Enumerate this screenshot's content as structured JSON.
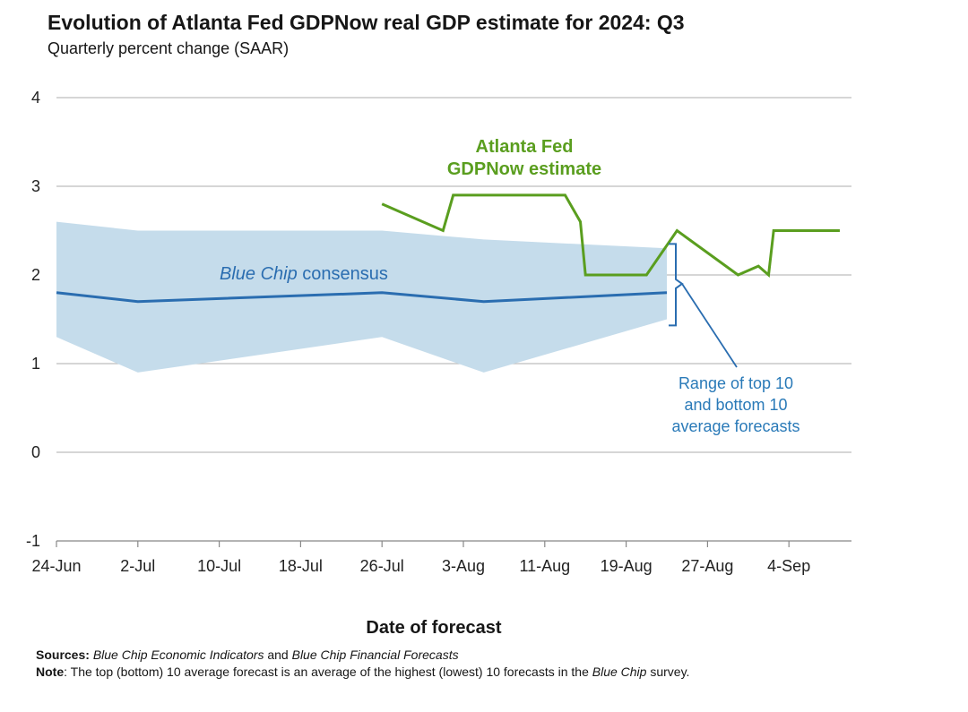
{
  "title": "Evolution of Atlanta Fed GDPNow real GDP estimate for 2024: Q3",
  "subtitle": "Quarterly percent change (SAAR)",
  "footer": {
    "sources_label": "Sources:",
    "sources_italic1": "Blue Chip Economic Indicators",
    "sources_and": "and",
    "sources_italic2": "Blue Chip Financial Forecasts",
    "note_label": "Note",
    "note_text": ": The top (bottom) 10 average forecast is an average of the highest (lowest) 10 forecasts in the",
    "note_italic": "Blue Chip",
    "note_end": "survey."
  },
  "colors": {
    "gdpnow": "#5a9e1f",
    "consensus": "#2a6db0",
    "band": "#c5dceb",
    "annotation": "#2a7ab8",
    "grid": "#bdbdbd"
  },
  "chart_data": {
    "type": "line",
    "xlabel": "Date of forecast",
    "ylabel": "",
    "ylim": [
      -1,
      4
    ],
    "yticks": [
      "-1",
      "0",
      "1",
      "2",
      "3",
      "4"
    ],
    "xticks": [
      "24-Jun",
      "2-Jul",
      "10-Jul",
      "18-Jul",
      "26-Jul",
      "3-Aug",
      "11-Aug",
      "19-Aug",
      "27-Aug",
      "4-Sep"
    ],
    "series": [
      {
        "name": "Atlanta Fed GDPNow estimate",
        "label_line1": "Atlanta Fed",
        "label_line2": "GDPNow estimate",
        "x": [
          32,
          38,
          39,
          50,
          51.5,
          52,
          58,
          61,
          67,
          69,
          70,
          70.5,
          72,
          77
        ],
        "y": [
          2.8,
          2.5,
          2.9,
          2.9,
          2.6,
          2.0,
          2.0,
          2.5,
          2.0,
          2.1,
          2.0,
          2.5,
          2.5,
          2.5
        ]
      },
      {
        "name": "Blue Chip consensus",
        "label_italic": "Blue Chip",
        "label_rest": "consensus",
        "x": [
          0,
          8,
          32,
          42,
          60
        ],
        "y": [
          1.8,
          1.7,
          1.8,
          1.7,
          1.8
        ]
      }
    ],
    "band": {
      "name": "Range of top 10 and bottom 10 average forecasts",
      "label_lines": [
        "Range of top 10",
        "and bottom 10",
        "average forecasts"
      ],
      "x": [
        0,
        8,
        32,
        42,
        60
      ],
      "upper": [
        2.6,
        2.5,
        2.5,
        2.4,
        2.3
      ],
      "lower": [
        1.3,
        0.9,
        1.3,
        0.9,
        1.5
      ]
    }
  }
}
